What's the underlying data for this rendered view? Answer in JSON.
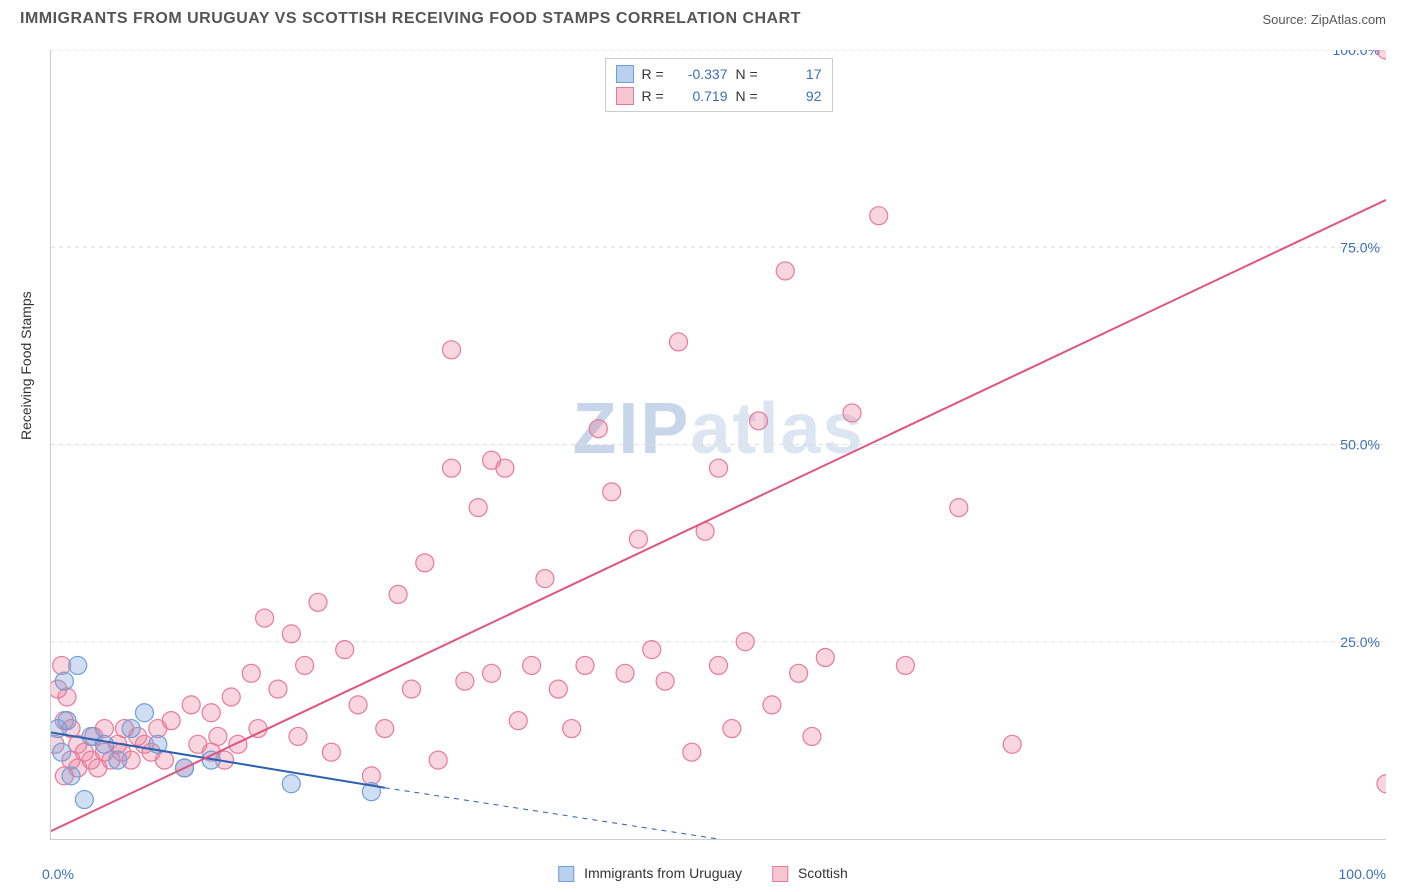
{
  "header": {
    "title": "IMMIGRANTS FROM URUGUAY VS SCOTTISH RECEIVING FOOD STAMPS CORRELATION CHART",
    "source": "Source: ZipAtlas.com"
  },
  "watermark": {
    "zip": "ZIP",
    "atlas": "atlas"
  },
  "chart": {
    "type": "scatter",
    "ylabel": "Receiving Food Stamps",
    "xlim": [
      0,
      100
    ],
    "ylim": [
      0,
      100
    ],
    "x_tick_step": 10,
    "y_ticks": [
      25,
      50,
      75,
      100
    ],
    "y_tick_labels": [
      "25.0%",
      "50.0%",
      "75.0%",
      "100.0%"
    ],
    "x_min_label": "0.0%",
    "x_max_label": "100.0%",
    "background_color": "#ffffff",
    "grid_color": "#dddddd",
    "axis_color": "#cccccc",
    "marker_radius": 9,
    "marker_stroke_width": 1.2,
    "line_width_solid": 2,
    "line_width_dashed": 1,
    "series": [
      {
        "name": "Immigrants from Uruguay",
        "fill": "rgba(120,160,220,0.35)",
        "stroke": "#6f9fd8",
        "swatch_fill": "#b9d0ee",
        "swatch_stroke": "#6f9fd8",
        "R": "-0.337",
        "N": "17",
        "trend": {
          "x1": 0,
          "y1": 13.5,
          "x2_solid": 25,
          "y2_solid": 6.5,
          "x2_dash": 50,
          "y2_dash": 0,
          "color": "#2b5fb0"
        },
        "points": [
          [
            0.5,
            14
          ],
          [
            0.8,
            11
          ],
          [
            1,
            20
          ],
          [
            1.2,
            15
          ],
          [
            1.5,
            8
          ],
          [
            2,
            22
          ],
          [
            2.5,
            5
          ],
          [
            3,
            13
          ],
          [
            4,
            12
          ],
          [
            5,
            10
          ],
          [
            6,
            14
          ],
          [
            7,
            16
          ],
          [
            8,
            12
          ],
          [
            10,
            9
          ],
          [
            12,
            10
          ],
          [
            18,
            7
          ],
          [
            24,
            6
          ]
        ]
      },
      {
        "name": "Scottish",
        "fill": "rgba(235,120,150,0.30)",
        "stroke": "#e77a9a",
        "swatch_fill": "#f6c6d3",
        "swatch_stroke": "#e77a9a",
        "R": "0.719",
        "N": "92",
        "trend": {
          "x1": 0,
          "y1": 1,
          "x2_solid": 100,
          "y2_solid": 81,
          "color": "#e0547d"
        },
        "points": [
          [
            0.3,
            12
          ],
          [
            0.5,
            19
          ],
          [
            0.8,
            22
          ],
          [
            1,
            15
          ],
          [
            1,
            8
          ],
          [
            1.2,
            18
          ],
          [
            1.5,
            10
          ],
          [
            1.5,
            14
          ],
          [
            2,
            12
          ],
          [
            2,
            9
          ],
          [
            2.5,
            11
          ],
          [
            3,
            10
          ],
          [
            3.2,
            13
          ],
          [
            3.5,
            9
          ],
          [
            4,
            11
          ],
          [
            4,
            14
          ],
          [
            4.5,
            10
          ],
          [
            5,
            12
          ],
          [
            5.3,
            11
          ],
          [
            5.5,
            14
          ],
          [
            6,
            10
          ],
          [
            6.5,
            13
          ],
          [
            7,
            12
          ],
          [
            7.5,
            11
          ],
          [
            8,
            14
          ],
          [
            8.5,
            10
          ],
          [
            9,
            15
          ],
          [
            10,
            9
          ],
          [
            10.5,
            17
          ],
          [
            11,
            12
          ],
          [
            12,
            16
          ],
          [
            12,
            11
          ],
          [
            12.5,
            13
          ],
          [
            13,
            10
          ],
          [
            13.5,
            18
          ],
          [
            14,
            12
          ],
          [
            15,
            21
          ],
          [
            15.5,
            14
          ],
          [
            16,
            28
          ],
          [
            17,
            19
          ],
          [
            18,
            26
          ],
          [
            18.5,
            13
          ],
          [
            19,
            22
          ],
          [
            20,
            30
          ],
          [
            21,
            11
          ],
          [
            22,
            24
          ],
          [
            23,
            17
          ],
          [
            24,
            8
          ],
          [
            25,
            14
          ],
          [
            26,
            31
          ],
          [
            27,
            19
          ],
          [
            28,
            35
          ],
          [
            29,
            10
          ],
          [
            30,
            47
          ],
          [
            30,
            62
          ],
          [
            31,
            20
          ],
          [
            32,
            42
          ],
          [
            33,
            21
          ],
          [
            33,
            48
          ],
          [
            34,
            47
          ],
          [
            35,
            15
          ],
          [
            36,
            22
          ],
          [
            37,
            33
          ],
          [
            38,
            19
          ],
          [
            39,
            14
          ],
          [
            40,
            22
          ],
          [
            41,
            52
          ],
          [
            42,
            44
          ],
          [
            43,
            21
          ],
          [
            44,
            38
          ],
          [
            45,
            24
          ],
          [
            46,
            20
          ],
          [
            47,
            63
          ],
          [
            48,
            11
          ],
          [
            49,
            39
          ],
          [
            50,
            22
          ],
          [
            50,
            47
          ],
          [
            51,
            14
          ],
          [
            52,
            25
          ],
          [
            53,
            53
          ],
          [
            54,
            17
          ],
          [
            55,
            72
          ],
          [
            56,
            21
          ],
          [
            57,
            13
          ],
          [
            58,
            23
          ],
          [
            60,
            54
          ],
          [
            62,
            79
          ],
          [
            64,
            22
          ],
          [
            68,
            42
          ],
          [
            72,
            12
          ],
          [
            100,
            100
          ],
          [
            100,
            7
          ]
        ]
      }
    ]
  }
}
